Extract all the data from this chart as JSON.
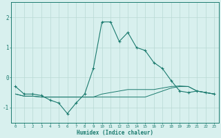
{
  "title": "",
  "xlabel": "Humidex (Indice chaleur)",
  "x": [
    0,
    1,
    2,
    3,
    4,
    5,
    6,
    7,
    8,
    9,
    10,
    11,
    12,
    13,
    14,
    15,
    16,
    17,
    18,
    19,
    20,
    21,
    22,
    23
  ],
  "line1": [
    -0.3,
    -0.55,
    -0.55,
    -0.6,
    -0.75,
    -0.85,
    -1.2,
    -0.85,
    -0.55,
    0.3,
    1.85,
    1.85,
    1.2,
    1.5,
    1.0,
    0.9,
    0.5,
    0.3,
    -0.1,
    -0.45,
    -0.5,
    -0.45,
    -0.5,
    -0.55
  ],
  "line2": [
    -0.55,
    -0.62,
    -0.62,
    -0.65,
    -0.65,
    -0.65,
    -0.65,
    -0.65,
    -0.65,
    -0.65,
    -0.65,
    -0.65,
    -0.65,
    -0.65,
    -0.65,
    -0.65,
    -0.55,
    -0.45,
    -0.35,
    -0.3,
    -0.3,
    -0.45,
    -0.5,
    -0.55
  ],
  "line3": [
    -0.55,
    -0.62,
    -0.62,
    -0.65,
    -0.65,
    -0.65,
    -0.65,
    -0.65,
    -0.65,
    -0.65,
    -0.55,
    -0.5,
    -0.45,
    -0.4,
    -0.4,
    -0.4,
    -0.4,
    -0.35,
    -0.3,
    -0.28,
    -0.3,
    -0.45,
    -0.5,
    -0.55
  ],
  "line_color": "#1a7a6e",
  "bg_color": "#d8f0ee",
  "grid_color": "#b8d8d4",
  "axis_color": "#1a7a6e",
  "ylim": [
    -1.5,
    2.5
  ],
  "yticks": [
    -1,
    0,
    1,
    2
  ],
  "xlim": [
    -0.5,
    23.5
  ]
}
